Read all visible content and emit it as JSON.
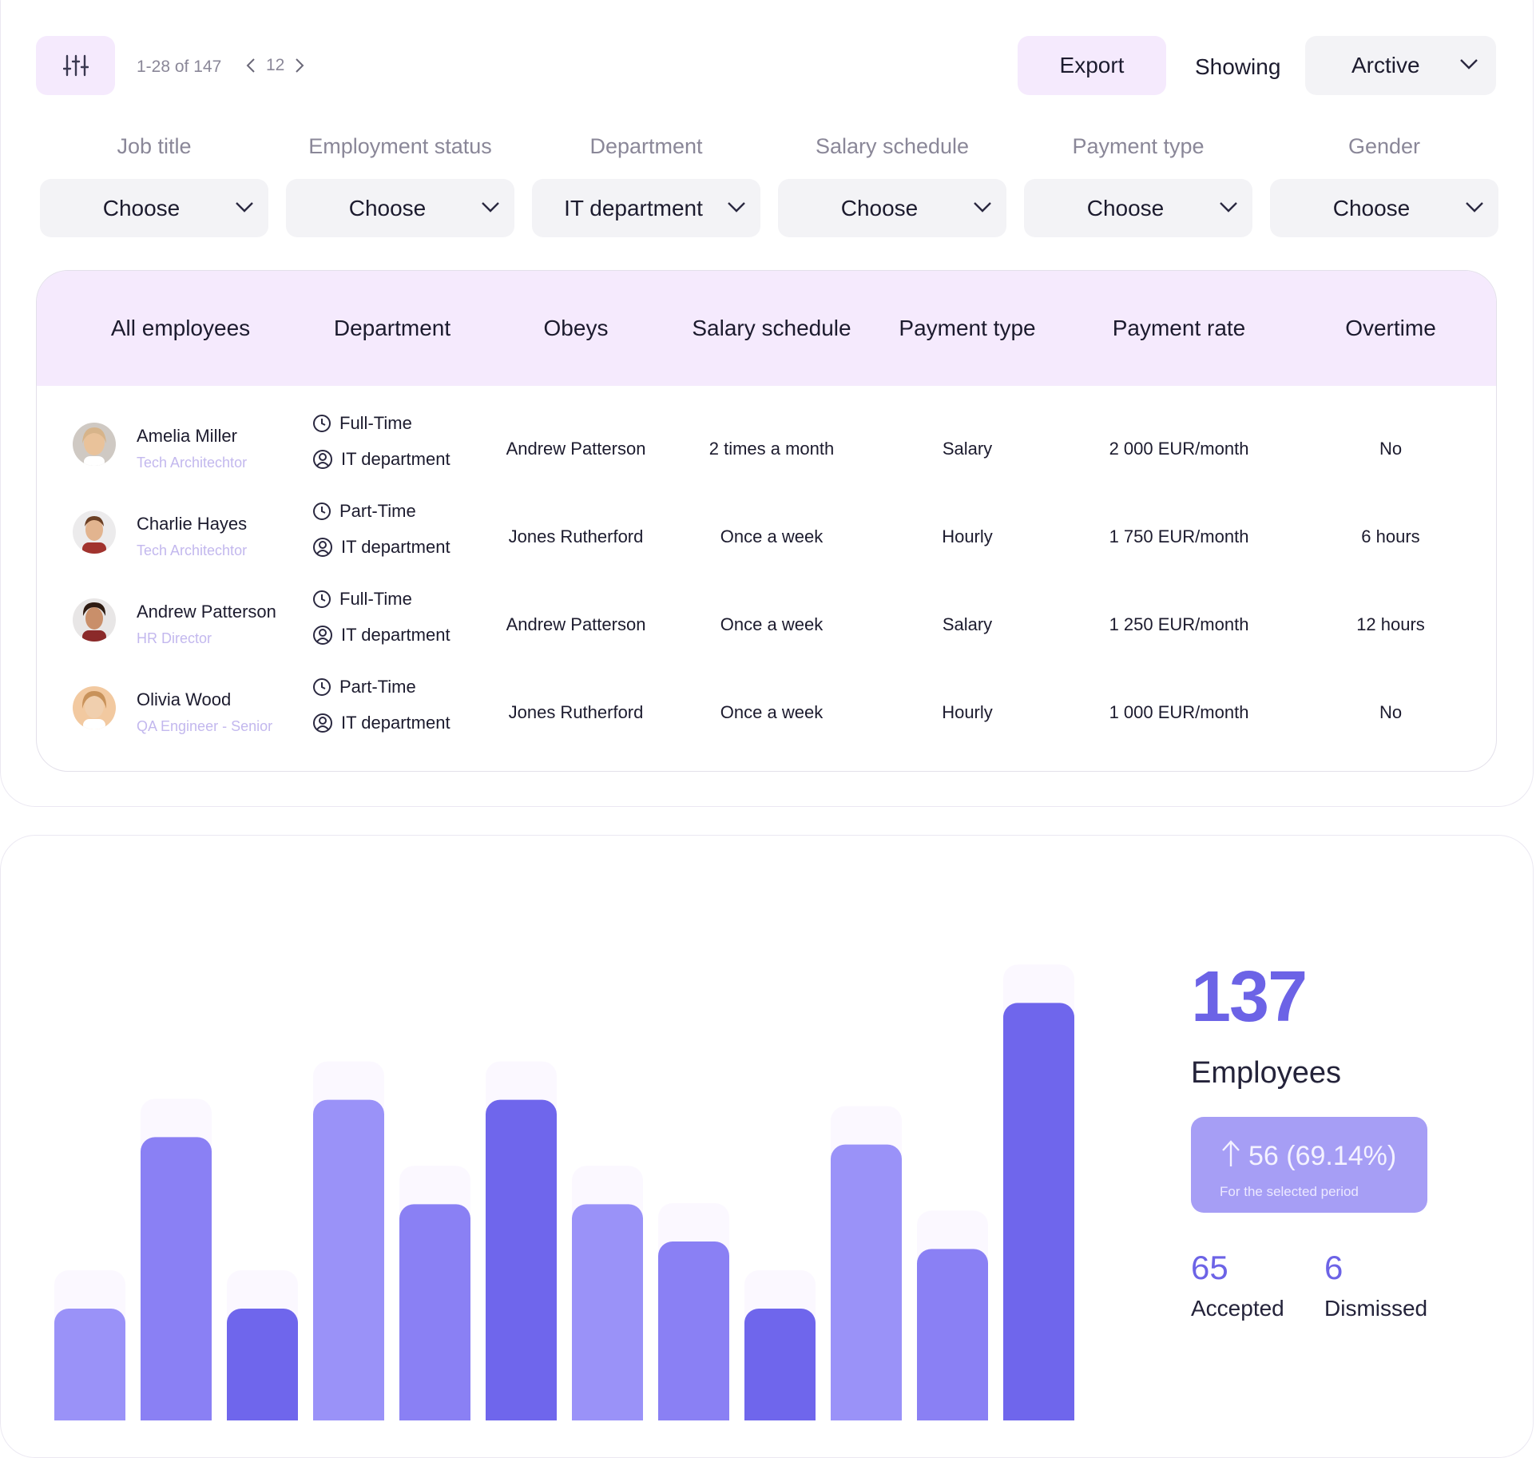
{
  "toolbar": {
    "filter_icon": "sliders-icon",
    "range_label": "1-28 of 147",
    "page_number": "12",
    "export_label": "Export",
    "showing_label": "Showing",
    "archive_value": "Arctive"
  },
  "filters": [
    {
      "label": "Job title",
      "value": "Choose"
    },
    {
      "label": "Employment status",
      "value": "Choose"
    },
    {
      "label": "Department",
      "value": "IT department"
    },
    {
      "label": "Salary schedule",
      "value": "Choose"
    },
    {
      "label": "Payment type",
      "value": "Choose"
    },
    {
      "label": "Gender",
      "value": "Choose"
    }
  ],
  "table": {
    "headers": [
      "All employees",
      "Department",
      "Obeys",
      "Salary schedule",
      "Payment type",
      "Payment rate",
      "Overtime"
    ],
    "rows": [
      {
        "name": "Amelia Miller",
        "role": "Tech Architechtor",
        "employment": "Full-Time",
        "department": "IT department",
        "obeys": "Andrew Patterson",
        "schedule": "2 times a month",
        "payment_type": "Salary",
        "rate": "2 000 EUR/month",
        "overtime": "No"
      },
      {
        "name": "Charlie Hayes",
        "role": "Tech Architechtor",
        "employment": "Part-Time",
        "department": "IT department",
        "obeys": "Jones Rutherford",
        "schedule": "Once a week",
        "payment_type": "Hourly",
        "rate": "1 750 EUR/month",
        "overtime": "6 hours"
      },
      {
        "name": "Andrew Patterson",
        "role": "HR Director",
        "employment": "Full-Time",
        "department": "IT department",
        "obeys": "Andrew Patterson",
        "schedule": "Once a week",
        "payment_type": "Salary",
        "rate": "1 250 EUR/month",
        "overtime": "12 hours"
      },
      {
        "name": "Olivia Wood",
        "role": "QA Engineer - Senior",
        "employment": "Part-Time",
        "department": "IT department",
        "obeys": "Jones Rutherford",
        "schedule": "Once a week",
        "payment_type": "Hourly",
        "rate": "1 000 EUR/month",
        "overtime": "No"
      }
    ]
  },
  "stats": {
    "total": "137",
    "total_label": "Employees",
    "change": "56 (69.14%)",
    "change_note": "For the selected period",
    "accepted": "65",
    "accepted_label": "Accepted",
    "dismissed": "6",
    "dismissed_label": "Dismissed"
  },
  "colors": {
    "accent": "#6c63e6",
    "bar_light": "#9a92f8",
    "bar_mid": "#8a80f4",
    "bar_dark": "#6f66ec",
    "header_bg": "#f5eafd"
  },
  "chart_data": {
    "type": "bar",
    "categories": [
      "",
      "",
      "",
      "",
      "",
      "",
      "",
      "",
      "",
      "",
      "",
      ""
    ],
    "values": [
      15,
      38,
      15,
      43,
      29,
      43,
      29,
      24,
      15,
      37,
      23,
      56
    ],
    "shades": [
      "light",
      "mid",
      "dark",
      "light",
      "mid",
      "dark",
      "light",
      "mid",
      "dark",
      "light",
      "mid",
      "dark"
    ],
    "ylim": [
      0,
      60
    ],
    "grid": false,
    "title": "",
    "xlabel": "",
    "ylabel": ""
  }
}
